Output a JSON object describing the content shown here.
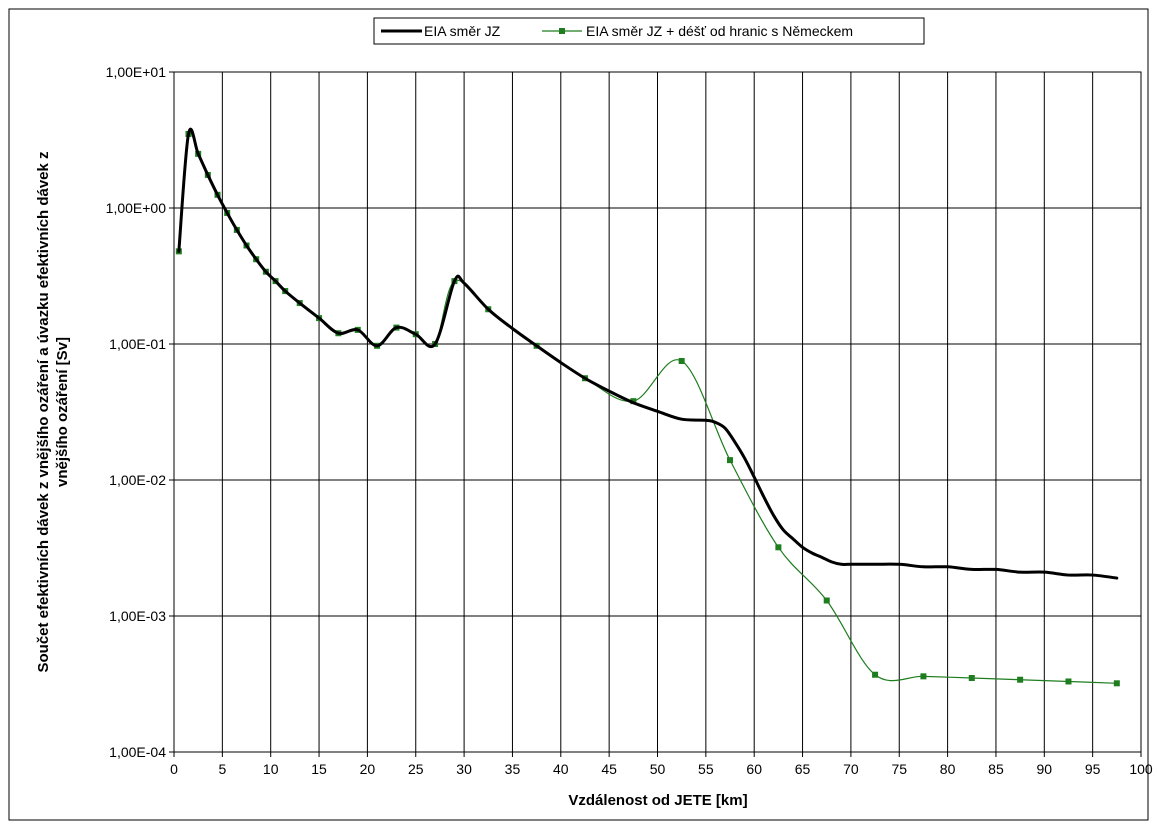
{
  "chart_data": {
    "type": "line",
    "title": "",
    "xlabel": "Vzdálenost od JETE [km]",
    "ylabel_lines": [
      "Součet efektivních dávek z vnějšího ozáření a úvazku efektivních dávek z",
      "vnějšího ozáření [Sv]"
    ],
    "x_scale": "linear",
    "y_scale": "log",
    "xlim": [
      0,
      100
    ],
    "ylim": [
      0.0001,
      10
    ],
    "x_ticks": [
      0,
      5,
      10,
      15,
      20,
      25,
      30,
      35,
      40,
      45,
      50,
      55,
      60,
      65,
      70,
      75,
      80,
      85,
      90,
      95,
      100
    ],
    "x_tick_labels": [
      "0",
      "5",
      "10",
      "15",
      "20",
      "25",
      "30",
      "35",
      "40",
      "45",
      "50",
      "55",
      "60",
      "65",
      "70",
      "75",
      "80",
      "85",
      "90",
      "95",
      "100"
    ],
    "y_ticks": [
      0.0001,
      0.001,
      0.01,
      0.1,
      1,
      10
    ],
    "y_tick_labels": [
      "1,00E-04",
      "1,00E-03",
      "1,00E-02",
      "1,00E-01",
      "1,00E+00",
      "1,00E+01"
    ],
    "grid": true,
    "legend_position": "top-center",
    "series": [
      {
        "name": "EIA směr JZ",
        "color": "#000000",
        "marker": "none",
        "x": [
          0.5,
          1.5,
          2.5,
          3.5,
          4.5,
          5.5,
          6.5,
          7.5,
          8.5,
          9.5,
          10.5,
          11.5,
          13,
          15,
          17,
          19,
          21,
          23,
          25,
          27,
          29,
          30,
          32.5,
          35,
          37.5,
          40,
          42.5,
          45,
          47.5,
          50,
          52.5,
          55,
          56,
          57,
          58,
          59,
          60,
          61,
          62,
          63,
          64,
          65,
          66,
          67,
          68,
          69,
          70,
          72.5,
          75,
          77.5,
          80,
          82.5,
          85,
          87.5,
          90,
          92.5,
          95,
          97.5
        ],
        "y": [
          0.48,
          3.5,
          2.5,
          1.75,
          1.25,
          0.92,
          0.69,
          0.53,
          0.42,
          0.34,
          0.29,
          0.245,
          0.2,
          0.155,
          0.12,
          0.127,
          0.097,
          0.132,
          0.118,
          0.1,
          0.29,
          0.28,
          0.18,
          0.13,
          0.097,
          0.073,
          0.056,
          0.045,
          0.037,
          0.032,
          0.028,
          0.0275,
          0.0265,
          0.024,
          0.019,
          0.0145,
          0.0105,
          0.0075,
          0.0055,
          0.0043,
          0.0037,
          0.0032,
          0.0029,
          0.0027,
          0.0025,
          0.0024,
          0.0024,
          0.0024,
          0.0024,
          0.0023,
          0.0023,
          0.0022,
          0.0022,
          0.0021,
          0.0021,
          0.002,
          0.002,
          0.0019
        ]
      },
      {
        "name": "EIA směr JZ + déšť od hranic s Německem",
        "color": "#1e7d1e",
        "marker": "square",
        "x": [
          0.5,
          1.5,
          2.5,
          3.5,
          4.5,
          5.5,
          6.5,
          7.5,
          8.5,
          9.5,
          10.5,
          11.5,
          13,
          15,
          17,
          19,
          21,
          23,
          25,
          27,
          29,
          32.5,
          37.5,
          42.5,
          47.5,
          52.5,
          57.5,
          62.5,
          67.5,
          72.5,
          77.5,
          82.5,
          87.5,
          92.5,
          97.5
        ],
        "y": [
          0.48,
          3.5,
          2.5,
          1.75,
          1.25,
          0.92,
          0.69,
          0.53,
          0.42,
          0.34,
          0.29,
          0.245,
          0.2,
          0.155,
          0.12,
          0.127,
          0.097,
          0.132,
          0.118,
          0.1,
          0.29,
          0.18,
          0.097,
          0.056,
          0.038,
          0.075,
          0.014,
          0.0032,
          0.0013,
          0.00037,
          0.00036,
          0.00035,
          0.00034,
          0.00033,
          0.00032
        ]
      }
    ]
  }
}
